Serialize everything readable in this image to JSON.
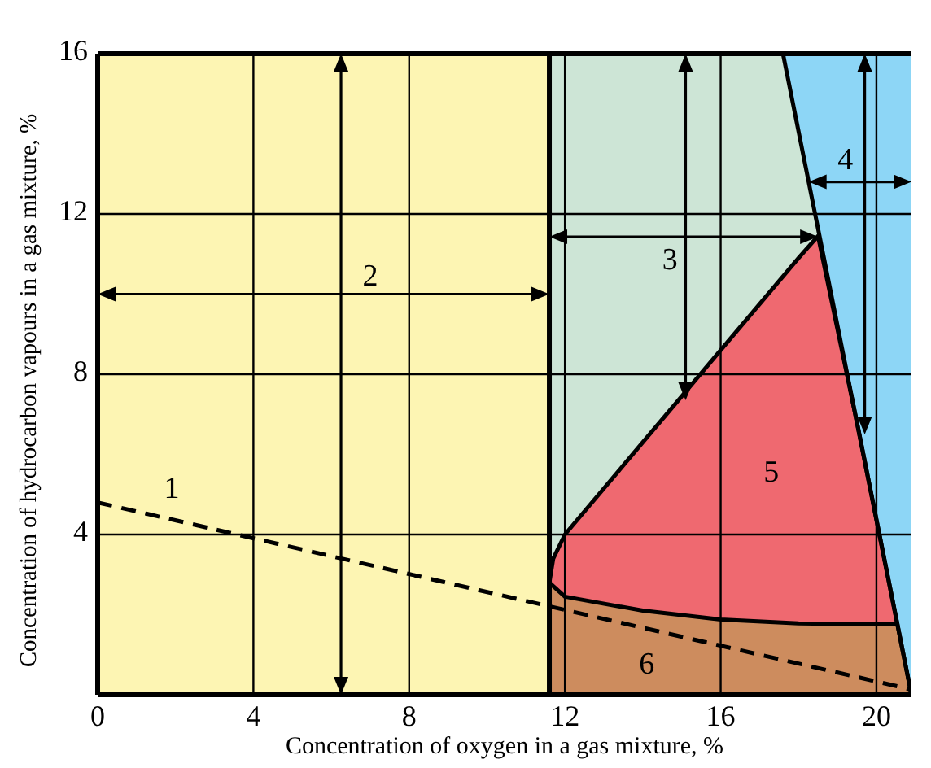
{
  "chart_data": {
    "type": "area",
    "xlabel": "Concentration of oxygen in a gas mixture, %",
    "ylabel": "Concentration of hydrocarbon vapours in a gas mixture, %",
    "xlim": [
      0,
      20.9
    ],
    "ylim": [
      0,
      16
    ],
    "xticks": [
      0,
      4,
      8,
      12,
      16,
      20
    ],
    "yticks": [
      {
        "value": 0,
        "label": null
      },
      4,
      8,
      12,
      16
    ],
    "grid": true,
    "bands": [
      {
        "axis": "x",
        "from": 0,
        "to": 11.6,
        "color": "#fdf5b3"
      }
    ],
    "ref_lines": [
      {
        "axis": "x",
        "value": 11.6,
        "color": "#000000"
      }
    ],
    "series": [
      {
        "color": "#8dd6f6",
        "x": [
          17.6,
          20.9
        ],
        "values": [
          16,
          16
        ]
      },
      {
        "color": "#cde5d6",
        "x": [
          11.6,
          17.6,
          20.9
        ],
        "values": [
          16,
          16,
          0
        ]
      },
      {
        "color": "#ef6970",
        "x": [
          11.6,
          11.7,
          12,
          14,
          16,
          18,
          18.5,
          19.5,
          20.54
        ],
        "values": [
          2.8,
          3.4,
          4,
          6.3,
          8.6,
          10.9,
          11.45,
          6.8,
          1.76
        ]
      },
      {
        "color": "#cd8c5e",
        "x": [
          11.6,
          12,
          14,
          16,
          18,
          20.54,
          20.9
        ],
        "values": [
          2.8,
          2.45,
          2.1,
          1.88,
          1.78,
          1.76,
          0
        ]
      },
      {
        "type": "line",
        "color": "#000000",
        "line_style": "dashed",
        "x": [
          0,
          20.9
        ],
        "values": [
          4.8,
          0.13
        ]
      }
    ],
    "annotations": [
      "1",
      "2",
      "3",
      "4",
      "5",
      "6"
    ]
  }
}
